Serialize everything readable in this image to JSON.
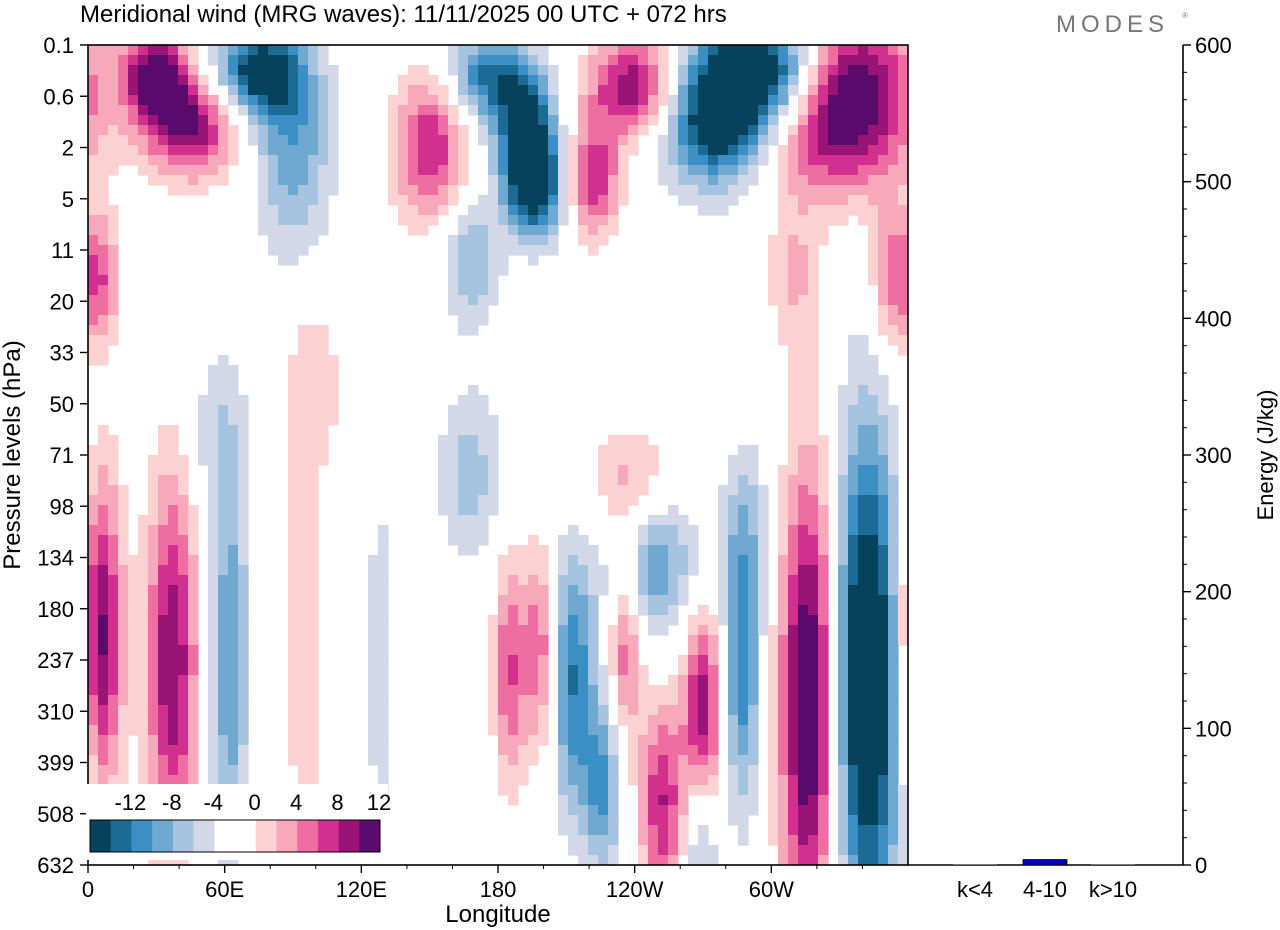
{
  "brand": "MODES",
  "chart_data": [
    {
      "type": "heatmap",
      "title": "Meridional wind (MRG waves):  11/11/2025  00 UTC  + 072 hrs",
      "xlabel": "Longitude",
      "ylabel": "Pressure levels (hPa)",
      "x_ticks": [
        "0",
        "60E",
        "120E",
        "180",
        "120W",
        "60W"
      ],
      "x_tick_values_deg": [
        0,
        60,
        120,
        180,
        240,
        300
      ],
      "xlim_deg": [
        0,
        360
      ],
      "y_levels_hPa": [
        "0.1",
        "0.6",
        "2",
        "5",
        "11",
        "20",
        "33",
        "50",
        "71",
        "98",
        "134",
        "180",
        "237",
        "310",
        "399",
        "508",
        "632"
      ],
      "colorbar": {
        "labels": [
          "-12",
          "-8",
          "-4",
          "0",
          "4",
          "8",
          "12"
        ],
        "levels": [
          -14,
          -12,
          -10,
          -8,
          -6,
          -4,
          -2,
          0,
          2,
          4,
          6,
          8,
          10,
          12,
          14
        ],
        "colors": [
          "#06425b",
          "#1b6b95",
          "#3b8fc4",
          "#6fa8d1",
          "#a6c4df",
          "#d3d8e8",
          "#ffffff",
          "#ffffff",
          "#fbd1d1",
          "#f7a8bb",
          "#ef6ea1",
          "#d2308f",
          "#9a1478",
          "#5a0a6a"
        ]
      },
      "features": [
        {
          "lon": 5,
          "lev": 11.5,
          "value": 14,
          "wlon": 7,
          "wlev": 2.2
        },
        {
          "lon": 37,
          "lev": 12,
          "value": 12,
          "wlon": 8,
          "wlev": 2.6
        },
        {
          "lon": 62,
          "lev": 12,
          "value": -8,
          "wlon": 6,
          "wlev": 2.8
        },
        {
          "lon": 95,
          "lev": 11.5,
          "value": 4,
          "wlon": 6,
          "wlev": 3
        },
        {
          "lon": 128,
          "lev": 12,
          "value": -3,
          "wlon": 5,
          "wlev": 3
        },
        {
          "lon": 185,
          "lev": 12.2,
          "value": 8,
          "wlon": 5,
          "wlev": 1.6
        },
        {
          "lon": 198,
          "lev": 11.8,
          "value": 8,
          "wlon": 5,
          "wlev": 1.4
        },
        {
          "lon": 213,
          "lev": 12.4,
          "value": -10,
          "wlon": 7,
          "wlev": 1.8
        },
        {
          "lon": 236,
          "lev": 11.6,
          "value": 8,
          "wlon": 5,
          "wlev": 1.4
        },
        {
          "lon": 226,
          "lev": 14.5,
          "value": -8,
          "wlon": 6,
          "wlev": 1.2
        },
        {
          "lon": 252,
          "lev": 14.8,
          "value": 10,
          "wlon": 7,
          "wlev": 1.4
        },
        {
          "lon": 269,
          "lev": 15.5,
          "value": -6,
          "wlon": 5,
          "wlev": 1.2
        },
        {
          "lon": 270,
          "lev": 13,
          "value": 12,
          "wlon": 6,
          "wlev": 1.4
        },
        {
          "lon": 287,
          "lev": 12,
          "value": -10,
          "wlon": 6,
          "wlev": 2
        },
        {
          "lon": 317,
          "lev": 12.8,
          "value": 16,
          "wlon": 9,
          "wlev": 3.2
        },
        {
          "lon": 342,
          "lev": 12.4,
          "value": -18,
          "wlon": 11,
          "wlev": 3.4
        },
        {
          "lon": 248,
          "lev": 10,
          "value": -8,
          "wlon": 14,
          "wlev": 1.1
        },
        {
          "lon": 240,
          "lev": 8.6,
          "value": 6,
          "wlon": 14,
          "wlev": 0.8
        },
        {
          "lon": 290,
          "lev": 9.2,
          "value": -3,
          "wlon": 8,
          "wlev": 1
        },
        {
          "lon": 168,
          "lev": 8.4,
          "value": -5,
          "wlon": 10,
          "wlev": 1.2
        },
        {
          "lon": 100,
          "lev": 6.6,
          "value": 3,
          "wlon": 10,
          "wlev": 1.2
        },
        {
          "lon": 55,
          "lev": 7.6,
          "value": -3,
          "wlon": 10,
          "wlev": 1.2
        },
        {
          "lon": 30,
          "lev": 0.6,
          "value": 14,
          "wlon": 10,
          "wlev": 0.6
        },
        {
          "lon": 45,
          "lev": 1.6,
          "value": 12,
          "wlon": 14,
          "wlev": 0.7
        },
        {
          "lon": 75,
          "lev": 0.5,
          "value": -14,
          "wlon": 14,
          "wlev": 0.6
        },
        {
          "lon": 90,
          "lev": 1.7,
          "value": -7,
          "wlon": 12,
          "wlev": 1.0
        },
        {
          "lon": 150,
          "lev": 2.0,
          "value": 10,
          "wlon": 11,
          "wlev": 1.0
        },
        {
          "lon": 175,
          "lev": 0.6,
          "value": -10,
          "wlon": 12,
          "wlev": 0.6
        },
        {
          "lon": 192,
          "lev": 1.6,
          "value": -14,
          "wlon": 9,
          "wlev": 0.8
        },
        {
          "lon": 196,
          "lev": 2.8,
          "value": -14,
          "wlon": 9,
          "wlev": 0.7
        },
        {
          "lon": 222,
          "lev": 2.6,
          "value": 10,
          "wlon": 8,
          "wlev": 0.8
        },
        {
          "lon": 240,
          "lev": 0.8,
          "value": 12,
          "wlon": 14,
          "wlev": 0.7
        },
        {
          "lon": 275,
          "lev": 1.5,
          "value": -14,
          "wlon": 16,
          "wlev": 0.9
        },
        {
          "lon": 330,
          "lev": 1.0,
          "value": 18,
          "wlon": 22,
          "wlev": 1.2
        },
        {
          "lon": 300,
          "lev": 0.5,
          "value": -18,
          "wlon": 20,
          "wlev": 0.8
        },
        {
          "lon": 168,
          "lev": 4.2,
          "value": -6,
          "wlon": 9,
          "wlev": 0.9
        },
        {
          "lon": 5,
          "lev": 4.6,
          "value": 8,
          "wlon": 6,
          "wlev": 0.9
        },
        {
          "lon": 352,
          "lev": 4.6,
          "value": 7,
          "wlon": 6,
          "wlev": 1.0
        },
        {
          "lon": 310,
          "lev": 4.5,
          "value": 4,
          "wlon": 8,
          "wlev": 1.0
        },
        {
          "lon": 90,
          "lev": 3.4,
          "value": -3,
          "wlon": 12,
          "wlev": 1.0
        }
      ]
    },
    {
      "type": "bar",
      "categories": [
        "k<4",
        "4-10",
        "k>10"
      ],
      "values": [
        0,
        4,
        0
      ],
      "ylabel": "Energy (J/kg)",
      "ylim": [
        0,
        600
      ],
      "y_ticks": [
        "0",
        "100",
        "200",
        "300",
        "400",
        "500",
        "600"
      ],
      "y_tick_values": [
        0,
        100,
        200,
        300,
        400,
        500,
        600
      ],
      "bar_color": "#0000cc"
    }
  ]
}
